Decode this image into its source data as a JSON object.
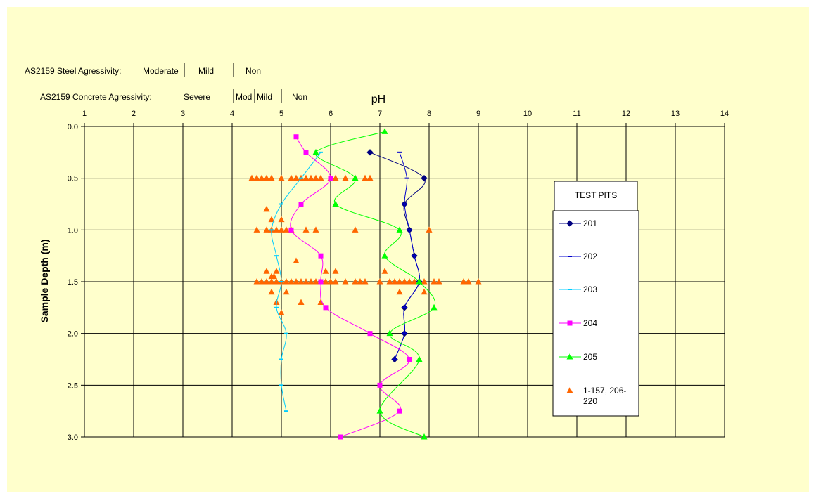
{
  "colors": {
    "background": "#FFFFCC",
    "grid": "#000000",
    "s201": "#000080",
    "s202": "#0000CC",
    "s203": "#00CCFF",
    "s204": "#FF00FF",
    "s205": "#00FF00",
    "scatter": "#FF6600"
  },
  "scale_notes": {
    "steel_label": "AS2159 Steel Agressivity:",
    "steel_zones": [
      "Moderate",
      "Mild",
      "Non"
    ],
    "concrete_label": "AS2159 Concrete Agressivity:",
    "concrete_zones": [
      "Severe",
      "Mod",
      "Mild",
      "Non"
    ]
  },
  "chart_data": {
    "type": "scatter",
    "title": "pH",
    "xlabel": "pH",
    "ylabel": "Sample Depth (m)",
    "xlim": [
      1,
      14
    ],
    "ylim": [
      0,
      3
    ],
    "y_inverted": true,
    "x_ticks": [
      1,
      2,
      3,
      4,
      5,
      6,
      7,
      8,
      9,
      10,
      11,
      12,
      13,
      14
    ],
    "y_ticks": [
      "0.0",
      "0.5",
      "1.0",
      "1.5",
      "2.0",
      "2.5",
      "3.0"
    ],
    "grid": true,
    "legend_title": "TEST PITS",
    "legend_position": "right",
    "series": [
      {
        "name": "201",
        "color": "#000080",
        "marker": "diamond",
        "line": true,
        "points": [
          [
            6.8,
            0.25
          ],
          [
            7.9,
            0.5
          ],
          [
            7.5,
            0.75
          ],
          [
            7.6,
            1.0
          ],
          [
            7.7,
            1.25
          ],
          [
            7.8,
            1.5
          ],
          [
            7.5,
            1.75
          ],
          [
            7.5,
            2.0
          ],
          [
            7.3,
            2.25
          ]
        ]
      },
      {
        "name": "202",
        "color": "#0000CC",
        "marker": "dash",
        "line": true,
        "points": [
          [
            7.4,
            0.25
          ],
          [
            7.55,
            0.5
          ],
          [
            7.5,
            0.75
          ],
          [
            7.6,
            1.0
          ],
          [
            7.7,
            1.25
          ],
          [
            7.8,
            1.5
          ],
          [
            7.5,
            1.75
          ],
          [
            7.5,
            2.0
          ],
          [
            7.3,
            2.25
          ]
        ]
      },
      {
        "name": "203",
        "color": "#00CCFF",
        "marker": "dash",
        "line": true,
        "points": [
          [
            5.8,
            0.25
          ],
          [
            5.4,
            0.5
          ],
          [
            5.0,
            0.75
          ],
          [
            4.8,
            1.0
          ],
          [
            4.9,
            1.25
          ],
          [
            5.0,
            1.5
          ],
          [
            4.9,
            1.75
          ],
          [
            5.1,
            2.0
          ],
          [
            5.0,
            2.25
          ],
          [
            5.0,
            2.5
          ],
          [
            5.1,
            2.75
          ]
        ]
      },
      {
        "name": "204",
        "color": "#FF00FF",
        "marker": "square",
        "line": true,
        "points": [
          [
            5.3,
            0.1
          ],
          [
            5.5,
            0.25
          ],
          [
            6.0,
            0.5
          ],
          [
            5.4,
            0.75
          ],
          [
            5.2,
            1.0
          ],
          [
            5.8,
            1.25
          ],
          [
            5.8,
            1.5
          ],
          [
            5.9,
            1.75
          ],
          [
            6.8,
            2.0
          ],
          [
            7.6,
            2.25
          ],
          [
            7.0,
            2.5
          ],
          [
            7.4,
            2.75
          ],
          [
            6.2,
            3.0
          ]
        ]
      },
      {
        "name": "205",
        "color": "#00FF00",
        "marker": "triangle",
        "line": true,
        "points": [
          [
            7.1,
            0.05
          ],
          [
            5.7,
            0.25
          ],
          [
            6.5,
            0.5
          ],
          [
            6.1,
            0.75
          ],
          [
            7.4,
            1.0
          ],
          [
            7.1,
            1.25
          ],
          [
            7.8,
            1.5
          ],
          [
            8.1,
            1.75
          ],
          [
            7.2,
            2.0
          ],
          [
            7.8,
            2.25
          ],
          [
            7.0,
            2.75
          ],
          [
            7.9,
            3.0
          ]
        ]
      },
      {
        "name": "1-157, 206-220",
        "color": "#FF6600",
        "marker": "triangle",
        "line": false,
        "points": [
          [
            4.4,
            0.5
          ],
          [
            4.5,
            0.5
          ],
          [
            4.6,
            0.5
          ],
          [
            4.7,
            0.5
          ],
          [
            4.8,
            0.5
          ],
          [
            5.0,
            0.5
          ],
          [
            5.2,
            0.5
          ],
          [
            5.3,
            0.5
          ],
          [
            5.4,
            0.5
          ],
          [
            5.5,
            0.5
          ],
          [
            5.6,
            0.5
          ],
          [
            5.7,
            0.5
          ],
          [
            5.8,
            0.5
          ],
          [
            6.0,
            0.5
          ],
          [
            6.1,
            0.5
          ],
          [
            6.3,
            0.5
          ],
          [
            6.5,
            0.5
          ],
          [
            6.7,
            0.5
          ],
          [
            6.8,
            0.5
          ],
          [
            4.7,
            0.8
          ],
          [
            4.8,
            0.9
          ],
          [
            5.0,
            0.9
          ],
          [
            4.5,
            1.0
          ],
          [
            4.7,
            1.0
          ],
          [
            4.8,
            1.0
          ],
          [
            4.9,
            1.0
          ],
          [
            5.0,
            1.0
          ],
          [
            5.1,
            1.0
          ],
          [
            5.2,
            1.0
          ],
          [
            5.5,
            1.0
          ],
          [
            5.7,
            1.0
          ],
          [
            6.5,
            1.0
          ],
          [
            8.0,
            1.0
          ],
          [
            5.3,
            1.3
          ],
          [
            4.7,
            1.4
          ],
          [
            4.9,
            1.4
          ],
          [
            5.9,
            1.4
          ],
          [
            6.1,
            1.4
          ],
          [
            7.1,
            1.4
          ],
          [
            4.8,
            1.45
          ],
          [
            4.85,
            1.45
          ],
          [
            4.5,
            1.5
          ],
          [
            4.6,
            1.5
          ],
          [
            4.7,
            1.5
          ],
          [
            4.8,
            1.5
          ],
          [
            4.9,
            1.5
          ],
          [
            5.0,
            1.5
          ],
          [
            5.1,
            1.5
          ],
          [
            5.2,
            1.5
          ],
          [
            5.3,
            1.5
          ],
          [
            5.4,
            1.5
          ],
          [
            5.5,
            1.5
          ],
          [
            5.6,
            1.5
          ],
          [
            5.7,
            1.5
          ],
          [
            5.8,
            1.5
          ],
          [
            5.9,
            1.5
          ],
          [
            6.0,
            1.5
          ],
          [
            6.1,
            1.5
          ],
          [
            6.3,
            1.5
          ],
          [
            6.5,
            1.5
          ],
          [
            6.6,
            1.5
          ],
          [
            6.7,
            1.5
          ],
          [
            7.0,
            1.5
          ],
          [
            7.2,
            1.5
          ],
          [
            7.3,
            1.5
          ],
          [
            7.4,
            1.5
          ],
          [
            7.5,
            1.5
          ],
          [
            7.6,
            1.5
          ],
          [
            7.7,
            1.5
          ],
          [
            7.9,
            1.5
          ],
          [
            8.1,
            1.5
          ],
          [
            8.2,
            1.5
          ],
          [
            8.7,
            1.5
          ],
          [
            8.8,
            1.5
          ],
          [
            9.0,
            1.5
          ],
          [
            4.8,
            1.6
          ],
          [
            5.1,
            1.6
          ],
          [
            7.4,
            1.6
          ],
          [
            7.9,
            1.6
          ],
          [
            4.9,
            1.7
          ],
          [
            5.4,
            1.7
          ],
          [
            5.8,
            1.7
          ],
          [
            5.0,
            1.8
          ]
        ]
      }
    ]
  }
}
